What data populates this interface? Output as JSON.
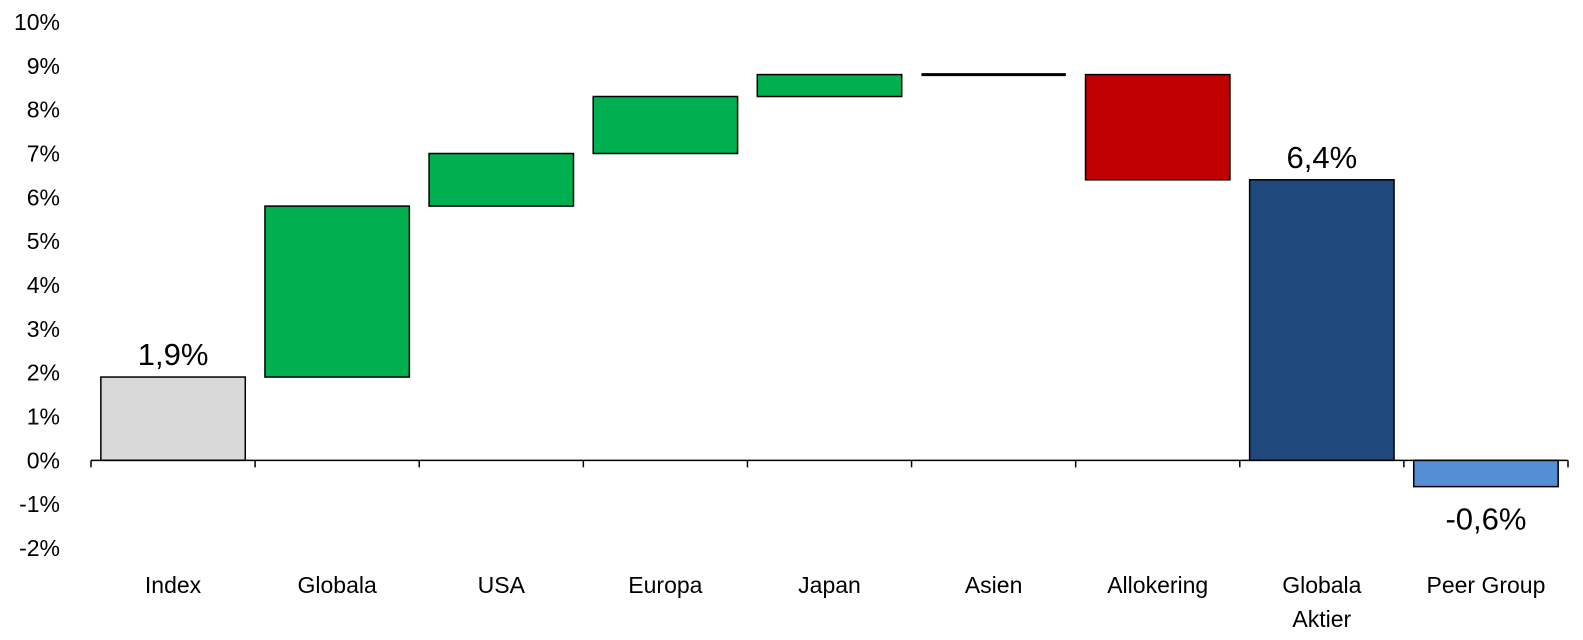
{
  "chart_data": {
    "type": "bar",
    "subtype": "waterfall",
    "title": "",
    "xlabel": "",
    "ylabel": "",
    "ylim": [
      -2,
      10
    ],
    "yticks": [
      10,
      9,
      8,
      7,
      6,
      5,
      4,
      3,
      2,
      1,
      0,
      -1,
      -2
    ],
    "ytick_labels": [
      "10%",
      "9%",
      "8%",
      "7%",
      "6%",
      "5%",
      "4%",
      "3%",
      "2%",
      "1%",
      "0%",
      "-1%",
      "-2%"
    ],
    "grid": false,
    "legend": "none",
    "categories": [
      [
        "Index"
      ],
      [
        "Globala"
      ],
      [
        "USA"
      ],
      [
        "Europa"
      ],
      [
        "Japan"
      ],
      [
        "Asien"
      ],
      [
        "Allokering"
      ],
      [
        "Globala",
        "Aktier"
      ],
      [
        "Peer Group"
      ]
    ],
    "bars": [
      {
        "category": "Index",
        "start": 0,
        "end": 1.9,
        "kind": "total",
        "color": "#d9d9d9",
        "label": "1,9%"
      },
      {
        "category": "Globala",
        "start": 1.9,
        "end": 5.8,
        "kind": "increase",
        "color": "#00b050",
        "label": ""
      },
      {
        "category": "USA",
        "start": 5.8,
        "end": 7.0,
        "kind": "increase",
        "color": "#00b050",
        "label": ""
      },
      {
        "category": "Europa",
        "start": 7.0,
        "end": 8.3,
        "kind": "increase",
        "color": "#00b050",
        "label": ""
      },
      {
        "category": "Japan",
        "start": 8.3,
        "end": 8.8,
        "kind": "increase",
        "color": "#00b050",
        "label": ""
      },
      {
        "category": "Asien",
        "start": 8.8,
        "end": 8.8,
        "kind": "flat",
        "color": "#000000",
        "label": ""
      },
      {
        "category": "Allokering",
        "start": 8.8,
        "end": 6.4,
        "kind": "decrease",
        "color": "#c00000",
        "label": ""
      },
      {
        "category": "Globala Aktier",
        "start": 0,
        "end": 6.4,
        "kind": "total",
        "color": "#1f497d",
        "label": "6,4%"
      },
      {
        "category": "Peer Group",
        "start": 0,
        "end": -0.6,
        "kind": "total",
        "color": "#558ed5",
        "label": "-0,6%"
      }
    ]
  }
}
